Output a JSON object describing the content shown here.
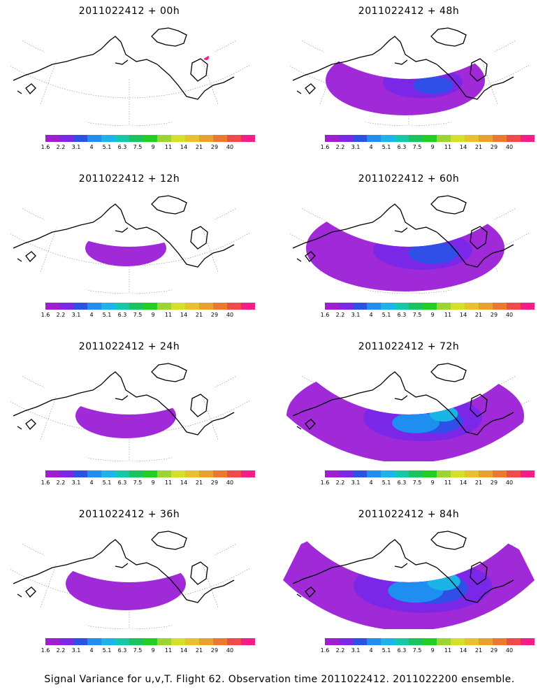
{
  "panels": [
    {
      "title": "2011022412 + 00h",
      "col": 0,
      "row": 0,
      "spread": 0
    },
    {
      "title": "2011022412 + 48h",
      "col": 1,
      "row": 0,
      "spread": 3
    },
    {
      "title": "2011022412 + 12h",
      "col": 0,
      "row": 1,
      "spread": 1
    },
    {
      "title": "2011022412 + 60h",
      "col": 1,
      "row": 1,
      "spread": 4
    },
    {
      "title": "2011022412 + 24h",
      "col": 0,
      "row": 2,
      "spread": 1.5
    },
    {
      "title": "2011022412 + 72h",
      "col": 1,
      "row": 2,
      "spread": 5
    },
    {
      "title": "2011022412 + 36h",
      "col": 0,
      "row": 3,
      "spread": 2
    },
    {
      "title": "2011022412 + 84h",
      "col": 1,
      "row": 3,
      "spread": 6
    }
  ],
  "colorbar": {
    "colors": [
      "#9c1fd6",
      "#7a27e8",
      "#2f4fe8",
      "#1e8ff0",
      "#1ab4e6",
      "#14c8a8",
      "#18c45e",
      "#1ed21e",
      "#9bd62c",
      "#d6de2c",
      "#e6c22c",
      "#e6a22c",
      "#f0782c",
      "#f24a4a",
      "#f21e8a"
    ],
    "labels": [
      "1.6",
      "2.2",
      "3.1",
      "4",
      "5.1",
      "6.3",
      "7.5",
      "9",
      "11",
      "14",
      "21",
      "29",
      "40"
    ]
  },
  "footer": "Signal Variance for u,v,T. Flight 62. Observation time 2011022412. 2011022200 ensemble."
}
